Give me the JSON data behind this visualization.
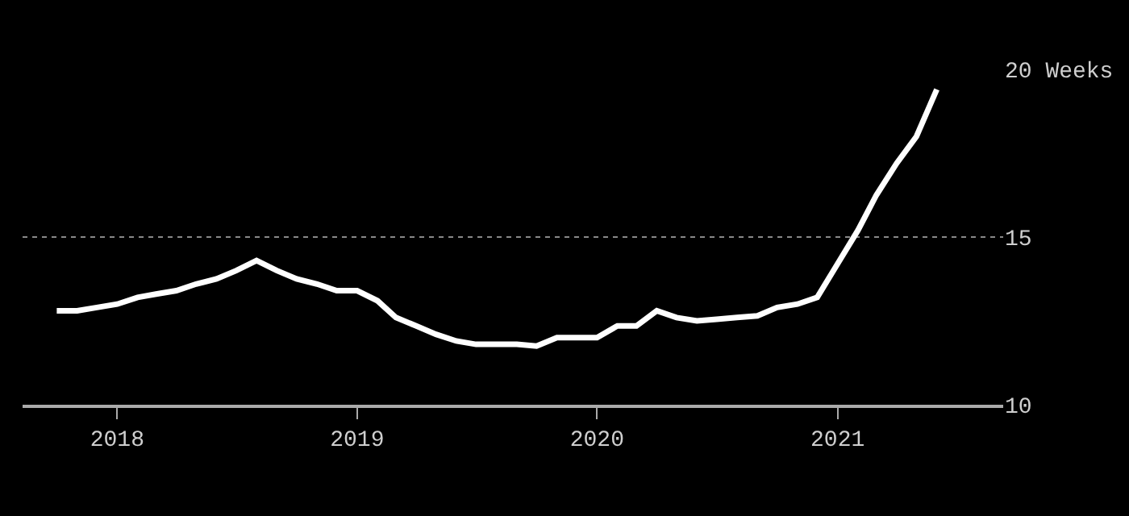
{
  "chart_data": {
    "type": "line",
    "x": [
      "2017-10",
      "2017-11",
      "2017-12",
      "2018-01",
      "2018-02",
      "2018-03",
      "2018-04",
      "2018-05",
      "2018-06",
      "2018-07",
      "2018-08",
      "2018-09",
      "2018-10",
      "2018-11",
      "2018-12",
      "2019-01",
      "2019-02",
      "2019-03",
      "2019-04",
      "2019-05",
      "2019-06",
      "2019-07",
      "2019-08",
      "2019-09",
      "2019-10",
      "2019-11",
      "2019-12",
      "2020-01",
      "2020-02",
      "2020-03",
      "2020-04",
      "2020-05",
      "2020-06",
      "2020-07",
      "2020-08",
      "2020-09",
      "2020-10",
      "2020-11",
      "2020-12",
      "2021-01",
      "2021-02",
      "2021-03",
      "2021-04",
      "2021-05",
      "2021-06"
    ],
    "series": [
      {
        "color": "#ffffff",
        "values": [
          12.8,
          12.8,
          12.9,
          13.0,
          13.2,
          13.3,
          13.4,
          13.6,
          13.75,
          14.0,
          14.3,
          14.0,
          13.75,
          13.6,
          13.4,
          13.4,
          13.1,
          12.6,
          12.35,
          12.1,
          11.9,
          11.8,
          11.8,
          11.8,
          11.75,
          12.0,
          12.0,
          12.0,
          12.35,
          12.35,
          12.8,
          12.6,
          12.5,
          12.55,
          12.6,
          12.65,
          12.9,
          13.0,
          13.2,
          14.2,
          15.2,
          16.25,
          17.2,
          18.0,
          19.4
        ]
      }
    ],
    "xlim": [
      "2017-08-10",
      "2021-09-10"
    ],
    "xticks": [
      {
        "value": "2018-01",
        "label": "2018"
      },
      {
        "value": "2019-01",
        "label": "2019"
      },
      {
        "value": "2020-01",
        "label": "2020"
      },
      {
        "value": "2021-01",
        "label": "2021"
      }
    ],
    "ylim": [
      10,
      20
    ],
    "yticks": [
      10,
      15,
      {
        "value": 20,
        "label": "20 Weeks"
      }
    ],
    "grid": "y",
    "line_style": "solid"
  }
}
